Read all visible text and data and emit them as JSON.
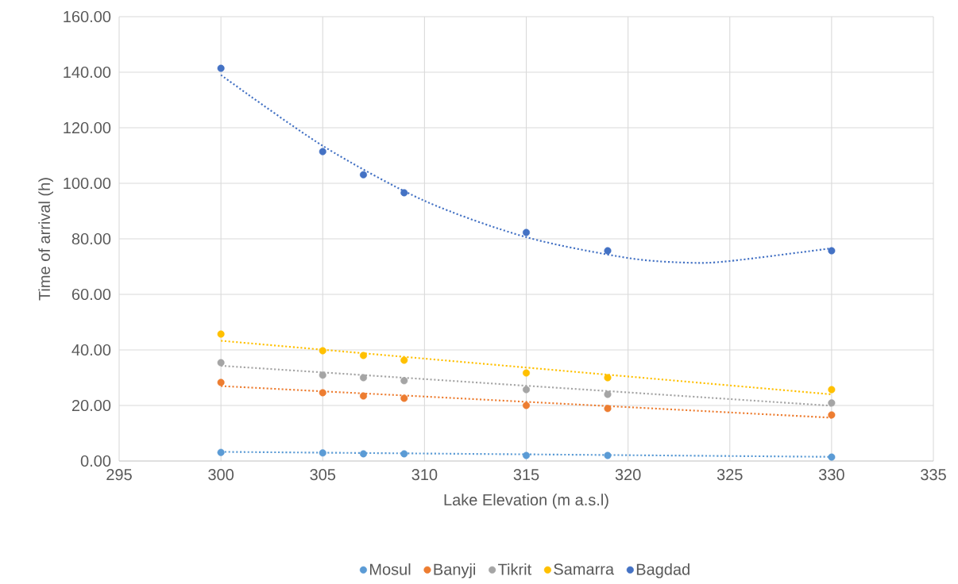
{
  "chart_data": {
    "type": "scatter",
    "xlabel": "Lake Elevation (m a.s.l)",
    "ylabel": "Time of arrival (h)",
    "x": [
      300,
      305,
      307,
      309,
      315,
      319,
      330
    ],
    "series": [
      {
        "name": "Mosul",
        "color": "#5b9bd5",
        "marker": "circle",
        "values": [
          3.1,
          2.9,
          2.6,
          2.6,
          2.0,
          2.0,
          1.4
        ]
      },
      {
        "name": "Banyji",
        "color": "#ed7d31",
        "marker": "circle",
        "values": [
          28.3,
          24.6,
          23.4,
          22.6,
          20.0,
          18.9,
          16.6
        ]
      },
      {
        "name": "Tikrit",
        "color": "#a5a5a5",
        "marker": "circle",
        "values": [
          35.4,
          30.9,
          30.0,
          28.9,
          25.7,
          24.0,
          20.9
        ]
      },
      {
        "name": "Samarra",
        "color": "#ffc000",
        "marker": "circle",
        "values": [
          45.7,
          39.7,
          38.0,
          36.3,
          31.7,
          30.0,
          25.7
        ]
      },
      {
        "name": "Bagdad",
        "color": "#4472c4",
        "marker": "circle",
        "values": [
          141.4,
          111.4,
          103.1,
          96.6,
          82.3,
          75.7,
          75.7
        ]
      },
      {
        "type": "line",
        "color": "#5b9bd5",
        "marker": "none",
        "line_style": "dotted",
        "x": [
          300,
          330
        ],
        "values": [
          3.3,
          1.5
        ]
      },
      {
        "type": "line",
        "color": "#ed7d31",
        "marker": "none",
        "line_style": "dotted",
        "x": [
          300,
          330
        ],
        "values": [
          27.0,
          15.6
        ]
      },
      {
        "type": "line",
        "color": "#a5a5a5",
        "marker": "none",
        "line_style": "dotted",
        "x": [
          300,
          330
        ],
        "values": [
          34.3,
          19.9
        ]
      },
      {
        "type": "line",
        "color": "#ffc000",
        "marker": "none",
        "line_style": "dotted",
        "x": [
          300,
          330
        ],
        "values": [
          43.3,
          24.0
        ]
      },
      {
        "type": "line",
        "color": "#4472c4",
        "marker": "none",
        "line_style": "dotted",
        "x": [
          300,
          305,
          310,
          315,
          320,
          323,
          325,
          330
        ],
        "values": [
          139.0,
          113.5,
          93.7,
          80.6,
          73.1,
          71.4,
          72.0,
          76.6
        ]
      }
    ],
    "xlim": [
      295,
      335
    ],
    "xticks": [
      295,
      300,
      305,
      310,
      315,
      320,
      325,
      330,
      335
    ],
    "ylim": [
      0,
      160
    ],
    "yticks": [
      {
        "value": 0,
        "label": "0.00"
      },
      {
        "value": 20,
        "label": "20.00"
      },
      {
        "value": 40,
        "label": "40.00"
      },
      {
        "value": 60,
        "label": "60.00"
      },
      {
        "value": 80,
        "label": "80.00"
      },
      {
        "value": 100,
        "label": "100.00"
      },
      {
        "value": 120,
        "label": "120.00"
      },
      {
        "value": 140,
        "label": "140.00"
      },
      {
        "value": 160,
        "label": "160.00"
      }
    ],
    "grid": true,
    "legend": "bottom"
  }
}
